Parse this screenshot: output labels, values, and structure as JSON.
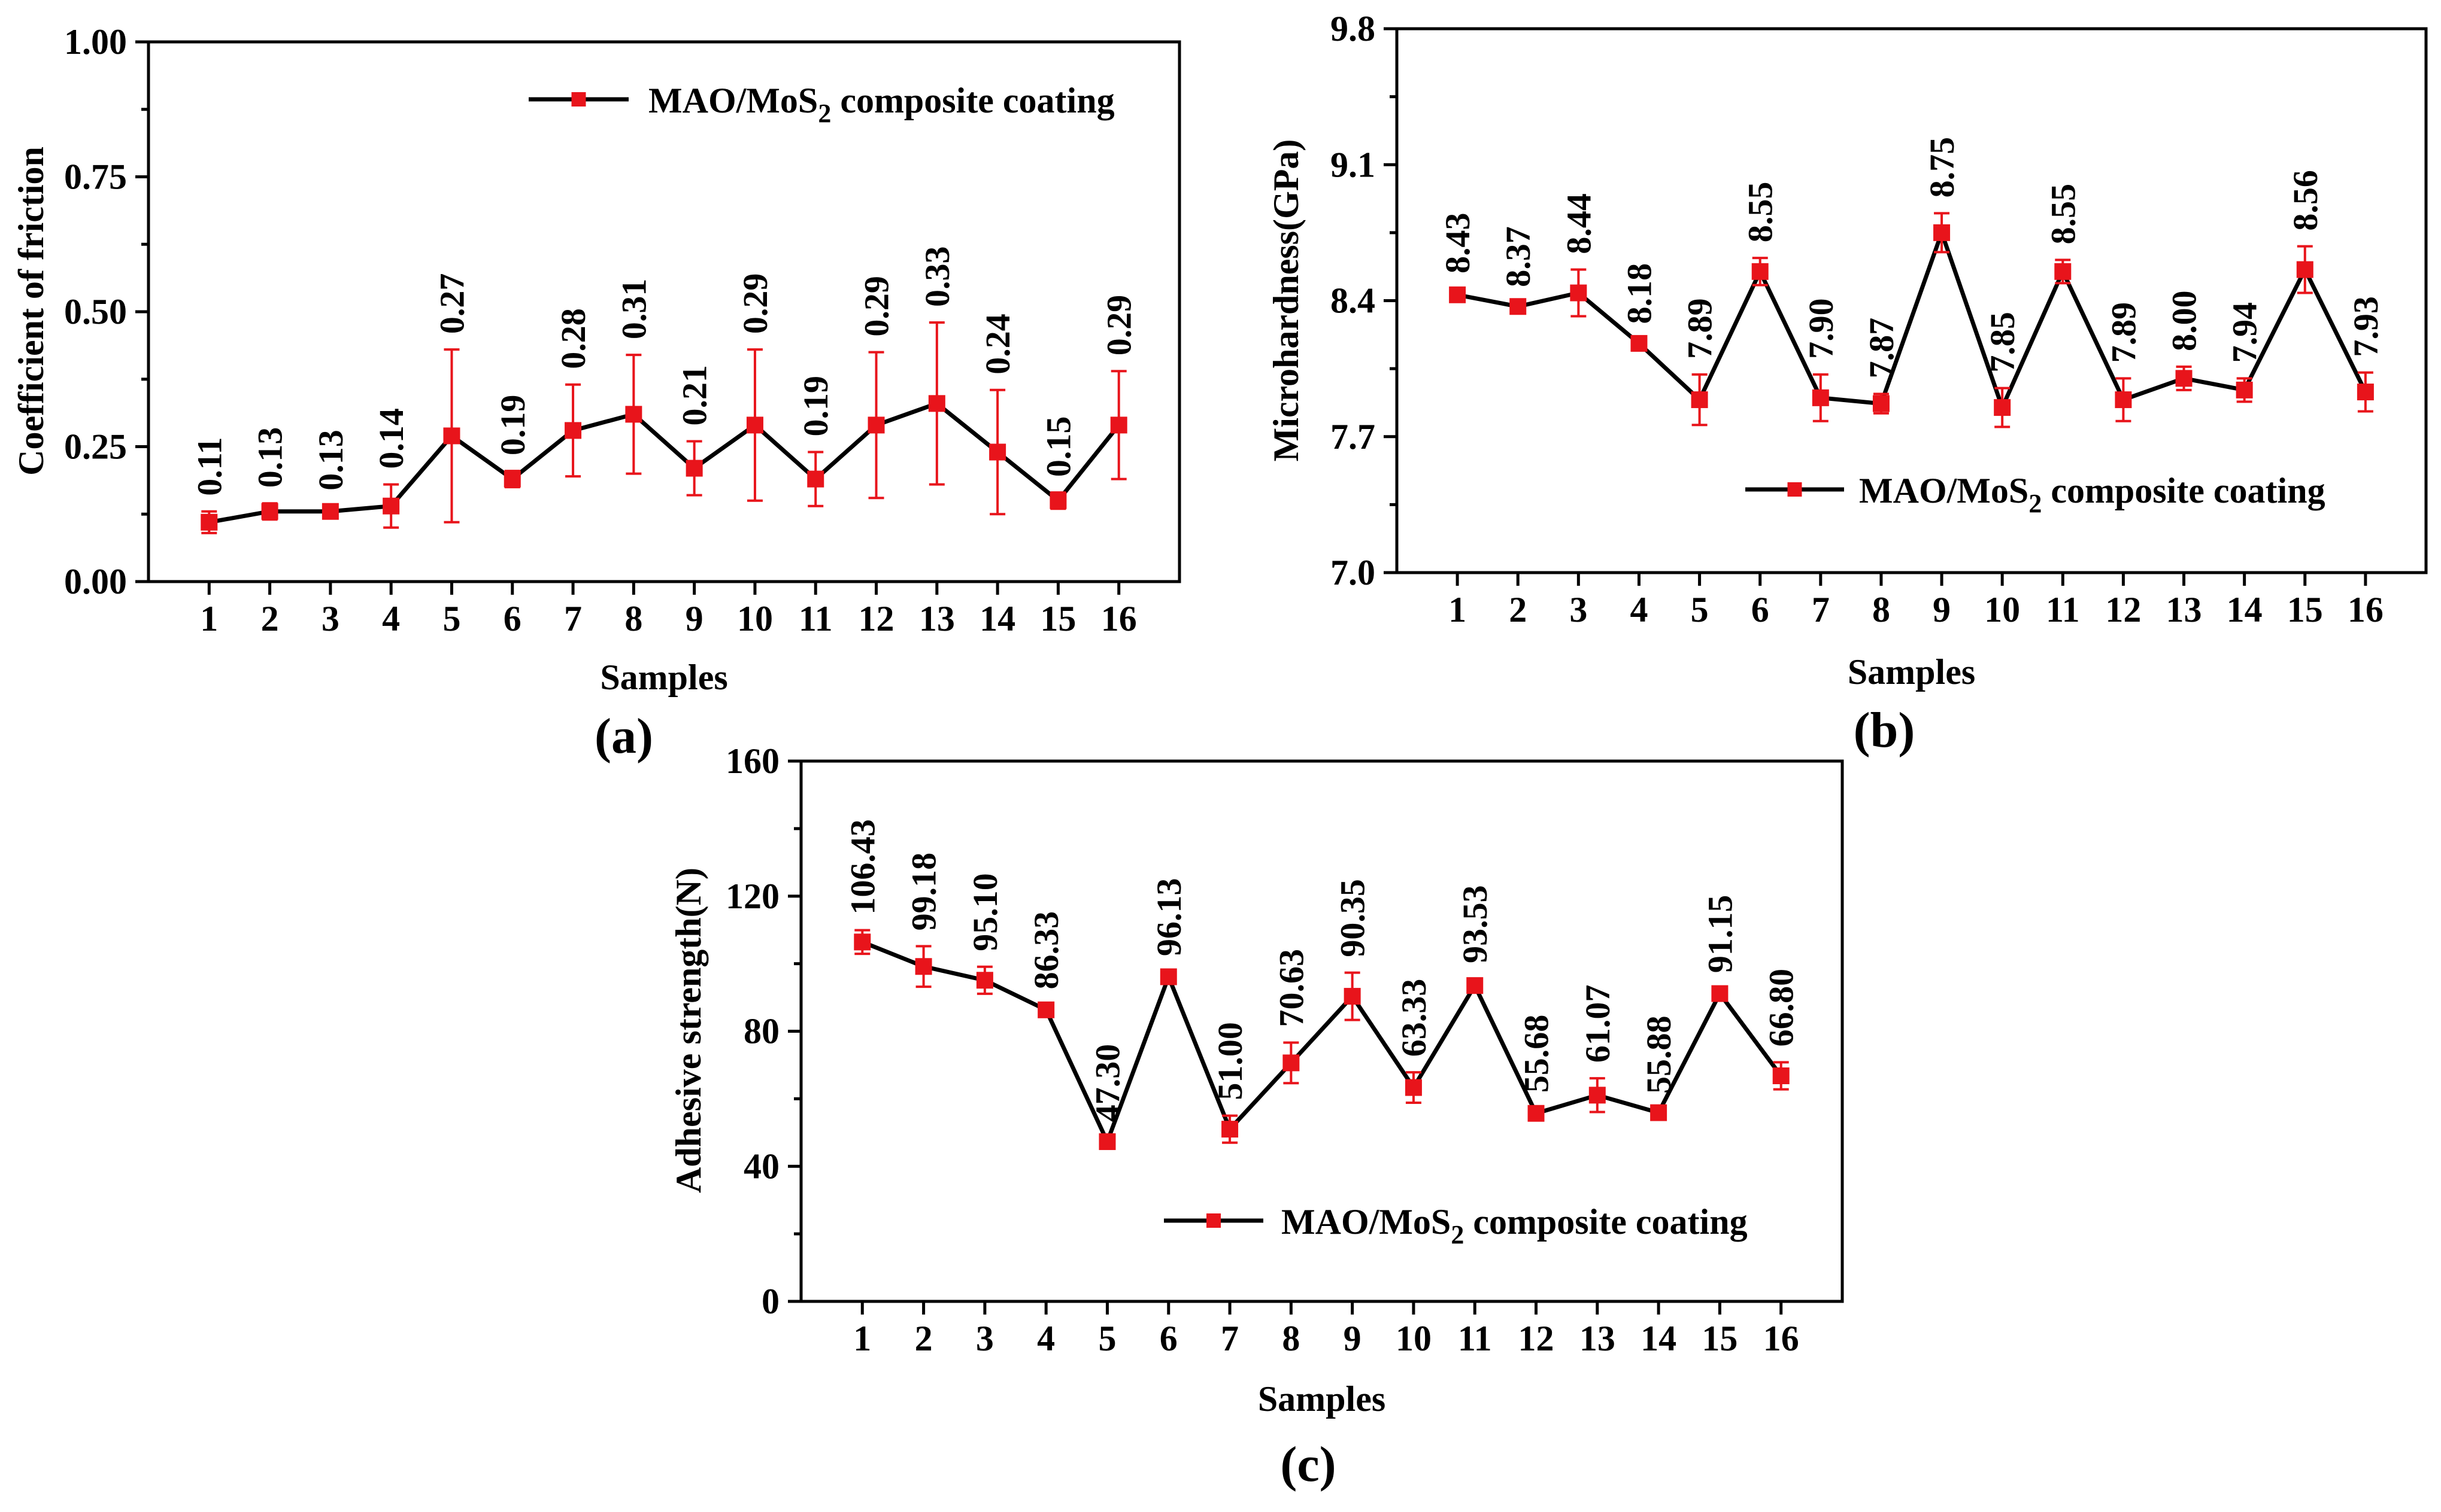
{
  "chart_data": [
    {
      "type": "line",
      "panel_label": "(a)",
      "title": "",
      "xlabel": "Samples",
      "ylabel": "Coefficient of friction",
      "ylim": [
        0,
        1.0
      ],
      "yticks": [
        "0.00",
        "0.25",
        "0.50",
        "0.75",
        "1.00"
      ],
      "legend_placement": "top-right",
      "categories": [
        "1",
        "2",
        "3",
        "4",
        "5",
        "6",
        "7",
        "8",
        "9",
        "10",
        "11",
        "12",
        "13",
        "14",
        "15",
        "16"
      ],
      "series": [
        {
          "name": "MAO/MoS",
          "name_sub": "2",
          "name_suffix": " composite coating",
          "values": [
            0.11,
            0.13,
            0.13,
            0.14,
            0.27,
            0.19,
            0.28,
            0.31,
            0.21,
            0.29,
            0.19,
            0.29,
            0.33,
            0.24,
            0.15,
            0.29
          ],
          "errors": [
            0.02,
            0.015,
            0.01,
            0.04,
            0.16,
            0.015,
            0.085,
            0.11,
            0.05,
            0.14,
            0.05,
            0.135,
            0.15,
            0.115,
            0.015,
            0.1
          ],
          "labels": [
            "0.11",
            "0.13",
            "0.13",
            "0.14",
            "0.27",
            "0.19",
            "0.28",
            "0.31",
            "0.21",
            "0.29",
            "0.19",
            "0.29",
            "0.33",
            "0.24",
            "0.15",
            "0.29"
          ]
        }
      ],
      "line_color": "#000000",
      "marker_color": "#e8141b"
    },
    {
      "type": "line",
      "panel_label": "(b)",
      "title": "",
      "xlabel": "Samples",
      "ylabel": "Microhardness(GPa)",
      "ylim": [
        7.0,
        9.8
      ],
      "yticks": [
        "7.0",
        "7.7",
        "8.4",
        "9.1",
        "9.8"
      ],
      "legend_placement": "bottom-right",
      "categories": [
        "1",
        "2",
        "3",
        "4",
        "5",
        "6",
        "7",
        "8",
        "9",
        "10",
        "11",
        "12",
        "13",
        "14",
        "15",
        "16"
      ],
      "series": [
        {
          "name": "MAO/MoS",
          "name_sub": "2",
          "name_suffix": " composite coating",
          "values": [
            8.43,
            8.37,
            8.44,
            8.18,
            7.89,
            8.55,
            7.9,
            7.87,
            8.75,
            7.85,
            8.55,
            7.89,
            8.0,
            7.94,
            8.56,
            7.93
          ],
          "errors": [
            0.03,
            0.02,
            0.12,
            0.02,
            0.13,
            0.07,
            0.12,
            0.05,
            0.1,
            0.1,
            0.06,
            0.11,
            0.06,
            0.06,
            0.12,
            0.1
          ],
          "labels": [
            "8.43",
            "8.37",
            "8.44",
            "8.18",
            "7.89",
            "8.55",
            "7.90",
            "7.87",
            "8.75",
            "7.85",
            "8.55",
            "7.89",
            "8.00",
            "7.94",
            "8.56",
            "7.93"
          ]
        }
      ],
      "line_color": "#000000",
      "marker_color": "#e8141b"
    },
    {
      "type": "line",
      "panel_label": "(c)",
      "title": "",
      "xlabel": "Samples",
      "ylabel": "Adhesive strength(N)",
      "ylim": [
        0,
        160
      ],
      "yticks": [
        "0",
        "40",
        "80",
        "120",
        "160"
      ],
      "legend_placement": "bottom-right",
      "categories": [
        "1",
        "2",
        "3",
        "4",
        "5",
        "6",
        "7",
        "8",
        "9",
        "10",
        "11",
        "12",
        "13",
        "14",
        "15",
        "16"
      ],
      "series": [
        {
          "name": "MAO/MoS",
          "name_sub": "2",
          "name_suffix": " composite coating",
          "values": [
            106.43,
            99.18,
            95.1,
            86.33,
            47.3,
            96.13,
            51.0,
            70.63,
            90.35,
            63.33,
            93.53,
            55.68,
            61.07,
            55.88,
            91.15,
            66.8
          ],
          "errors": [
            3.5,
            6,
            4,
            1.5,
            1.2,
            1.5,
            4,
            6,
            7,
            4.5,
            2,
            1.5,
            5,
            1,
            1.5,
            4
          ],
          "labels": [
            "106.43",
            "99.18",
            "95.10",
            "86.33",
            "47.30",
            "96.13",
            "51.00",
            "70.63",
            "90.35",
            "63.33",
            "93.53",
            "55.68",
            "61.07",
            "55.88",
            "91.15",
            "66.80"
          ]
        }
      ],
      "line_color": "#000000",
      "marker_color": "#e8141b"
    }
  ]
}
